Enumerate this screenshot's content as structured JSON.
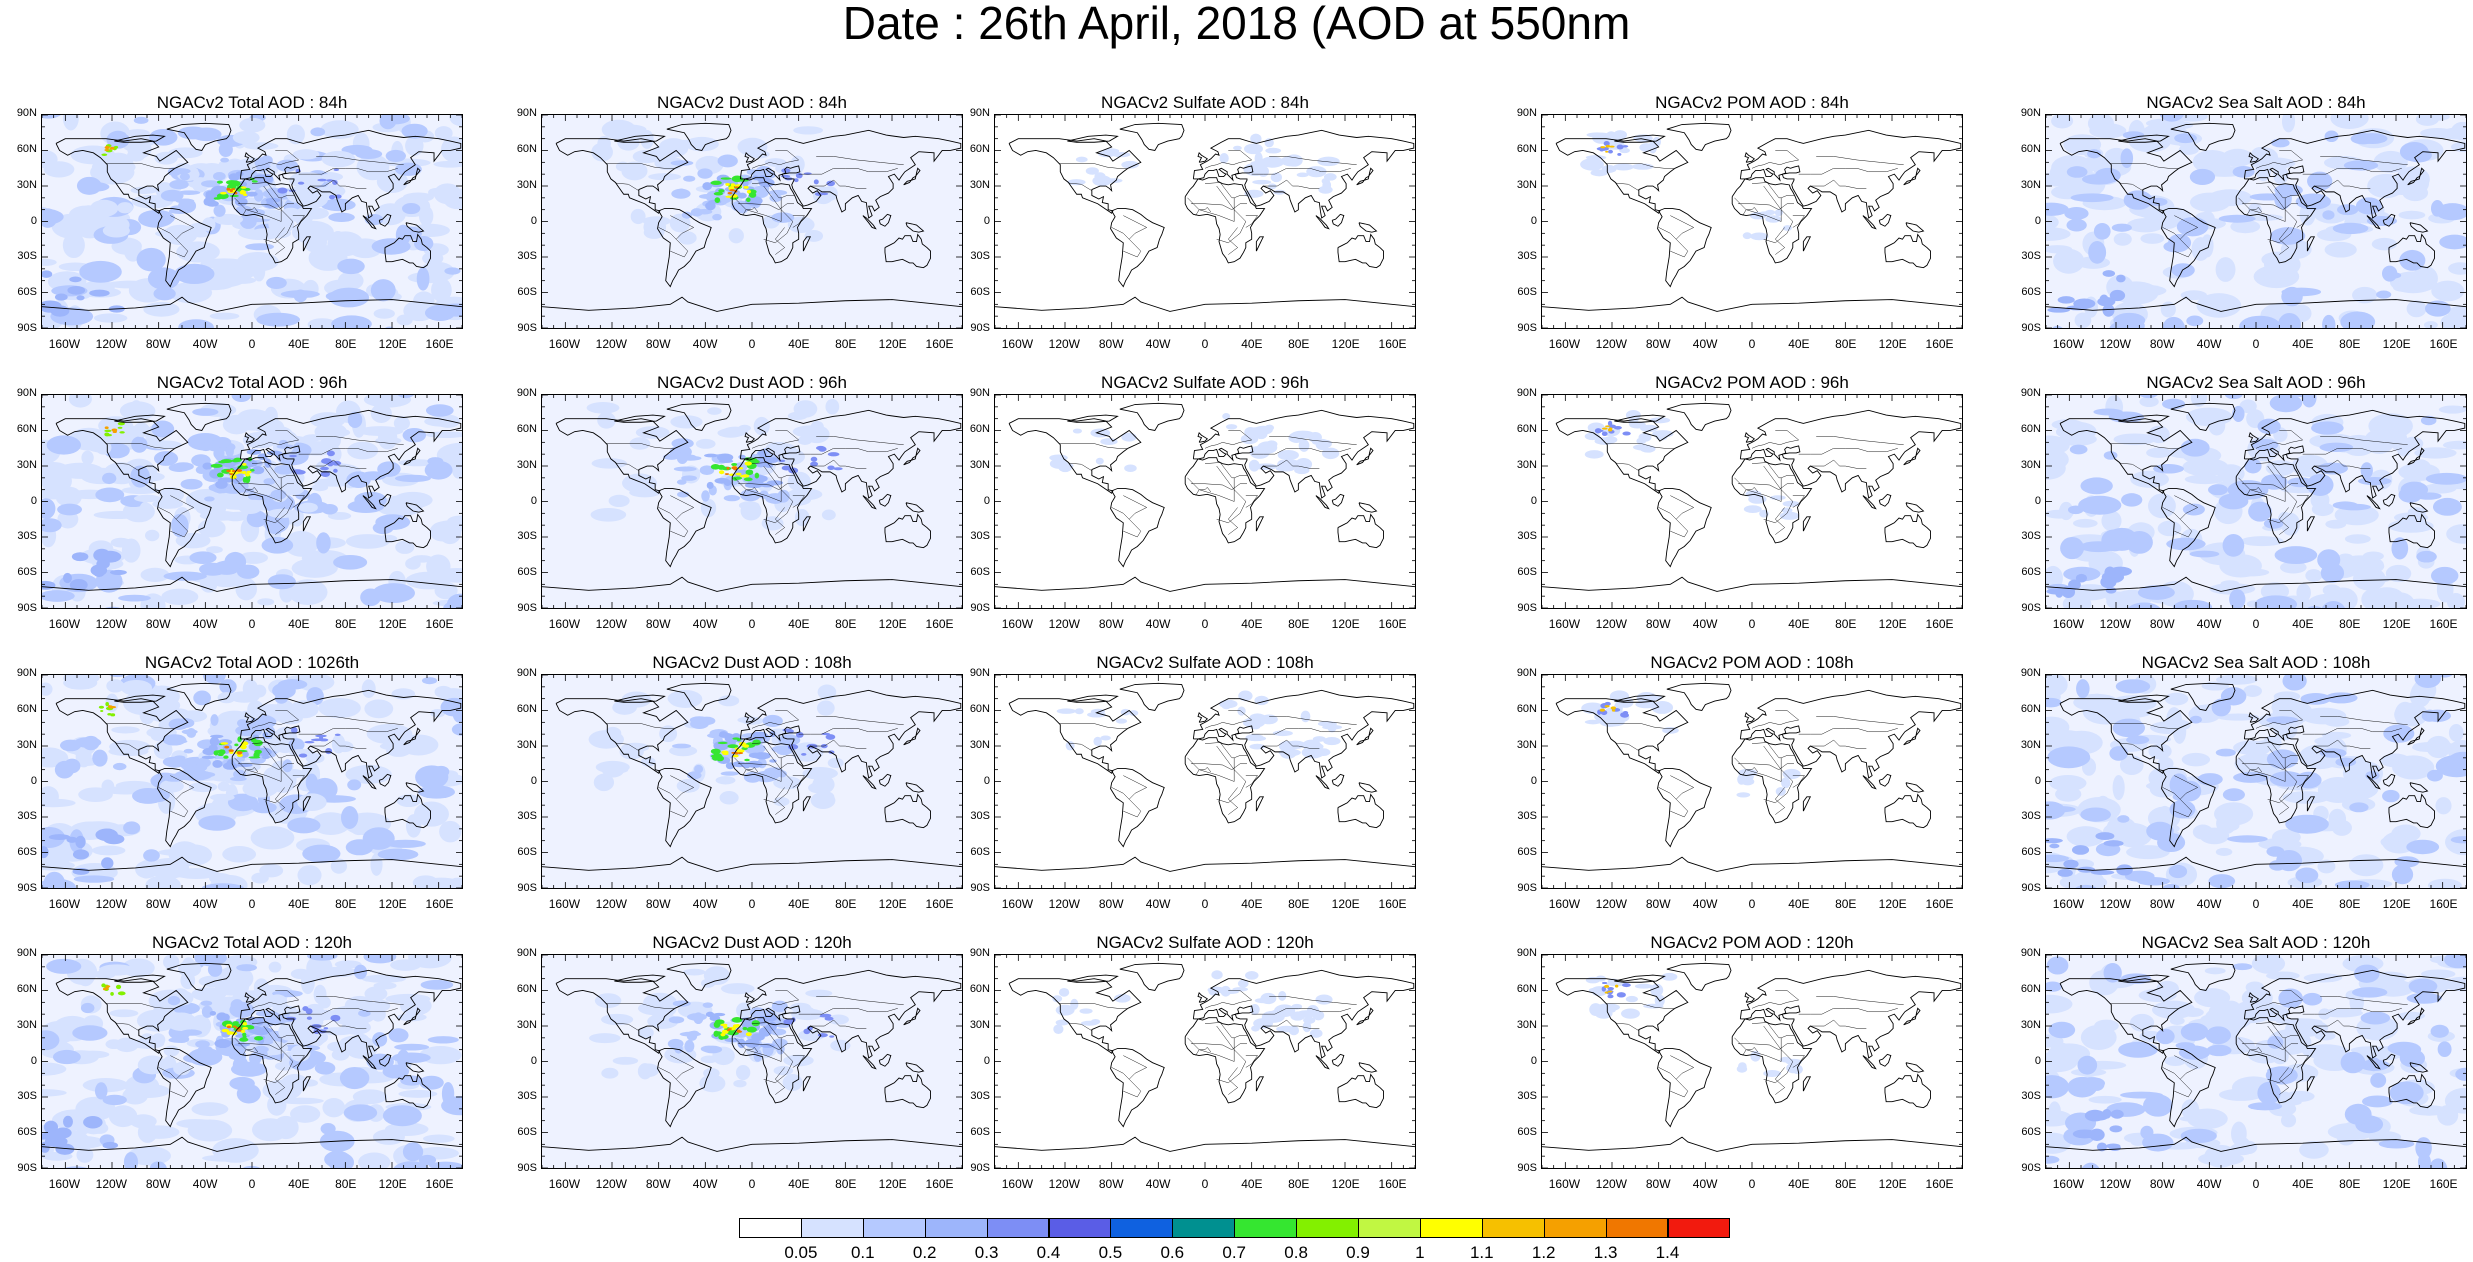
{
  "title": "Date : 26th April, 2018 (AOD at 550nm",
  "lat_labels": [
    "90N",
    "60N",
    "30N",
    "0",
    "30S",
    "60S",
    "90S"
  ],
  "lon_labels": [
    "160W",
    "120W",
    "80W",
    "40W",
    "0",
    "40E",
    "80E",
    "120E",
    "160E"
  ],
  "panels": [
    {
      "title": "NGACv2 Total AOD : 84h",
      "species": "total"
    },
    {
      "title": "NGACv2 Dust AOD : 84h",
      "species": "dust"
    },
    {
      "title": "NGACv2 Sulfate AOD : 84h",
      "species": "sulfate"
    },
    {
      "title": "NGACv2 POM AOD : 84h",
      "species": "pom"
    },
    {
      "title": "NGACv2 Sea Salt AOD : 84h",
      "species": "seasalt"
    },
    {
      "title": "NGACv2 Total AOD : 96h",
      "species": "total"
    },
    {
      "title": "NGACv2 Dust AOD : 96h",
      "species": "dust"
    },
    {
      "title": "NGACv2 Sulfate AOD : 96h",
      "species": "sulfate"
    },
    {
      "title": "NGACv2 POM AOD : 96h",
      "species": "pom"
    },
    {
      "title": "NGACv2 Sea Salt AOD : 96h",
      "species": "seasalt"
    },
    {
      "title": "NGACv2 Total AOD : 1026th",
      "species": "total"
    },
    {
      "title": "NGACv2 Dust AOD : 108h",
      "species": "dust"
    },
    {
      "title": "NGACv2 Sulfate AOD : 108h",
      "species": "sulfate"
    },
    {
      "title": "NGACv2 POM AOD : 108h",
      "species": "pom"
    },
    {
      "title": "NGACv2 Sea Salt AOD : 108h",
      "species": "seasalt"
    },
    {
      "title": "NGACv2 Total AOD : 120h",
      "species": "total"
    },
    {
      "title": "NGACv2 Dust AOD : 120h",
      "species": "dust"
    },
    {
      "title": "NGACv2 Sulfate AOD : 120h",
      "species": "sulfate"
    },
    {
      "title": "NGACv2 POM AOD : 120h",
      "species": "pom"
    },
    {
      "title": "NGACv2 Sea Salt  AOD : 120h",
      "species": "seasalt"
    }
  ],
  "colorbar": {
    "labels": [
      "0.05",
      "0.1",
      "0.2",
      "0.3",
      "0.4",
      "0.5",
      "0.6",
      "0.7",
      "0.8",
      "0.9",
      "1",
      "1.1",
      "1.2",
      "1.3",
      "1.4"
    ],
    "colors": [
      "#ffffff",
      "#d6e2ff",
      "#b5c9ff",
      "#9db5fb",
      "#7d8ef5",
      "#5a5de6",
      "#0f61e0",
      "#009090",
      "#35e630",
      "#83f000",
      "#c1f742",
      "#ffff00",
      "#f6c000",
      "#f5a000",
      "#f07700",
      "#f21a0e"
    ]
  }
}
